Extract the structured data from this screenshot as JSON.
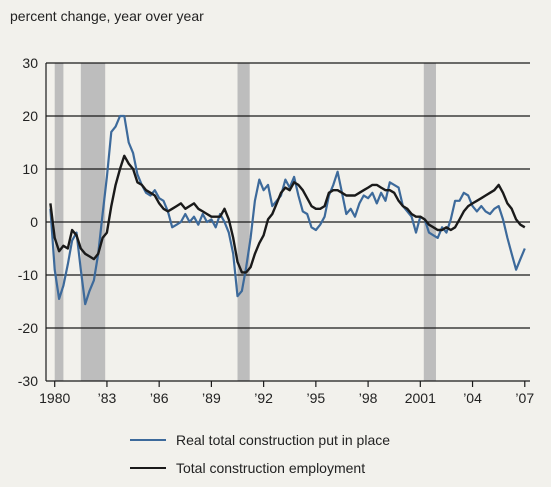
{
  "chart_data": {
    "type": "line",
    "ylabel": "percent change, year over year",
    "ylim": [
      -30,
      30
    ],
    "yticks": [
      -30,
      -20,
      -10,
      0,
      10,
      20,
      30
    ],
    "xlim": [
      1979.5,
      2007.3
    ],
    "xticks": [
      {
        "x": 1980,
        "label": "1980"
      },
      {
        "x": 1983,
        "label": "’83"
      },
      {
        "x": 1986,
        "label": "’86"
      },
      {
        "x": 1989,
        "label": "’89"
      },
      {
        "x": 1992,
        "label": "’92"
      },
      {
        "x": 1995,
        "label": "’95"
      },
      {
        "x": 1998,
        "label": "’98"
      },
      {
        "x": 2001,
        "label": "2001"
      },
      {
        "x": 2004,
        "label": "’04"
      },
      {
        "x": 2007,
        "label": "’07"
      }
    ],
    "grid": true,
    "recessions": [
      [
        1980.0,
        1980.5
      ],
      [
        1981.5,
        1982.9
      ],
      [
        1990.5,
        1991.2
      ],
      [
        2001.2,
        2001.9
      ]
    ],
    "series": [
      {
        "name": "Real total construction put in place",
        "color": "#3d6a9b",
        "points": [
          [
            1979.75,
            2.5
          ],
          [
            1980.0,
            -9.0
          ],
          [
            1980.25,
            -14.5
          ],
          [
            1980.5,
            -12.0
          ],
          [
            1980.75,
            -8.0
          ],
          [
            1981.0,
            -3.5
          ],
          [
            1981.25,
            -2.0
          ],
          [
            1981.5,
            -9.0
          ],
          [
            1981.75,
            -15.5
          ],
          [
            1982.0,
            -13.0
          ],
          [
            1982.25,
            -11.0
          ],
          [
            1982.5,
            -6.0
          ],
          [
            1982.75,
            1.5
          ],
          [
            1983.0,
            8.5
          ],
          [
            1983.25,
            17.0
          ],
          [
            1983.5,
            18.0
          ],
          [
            1983.75,
            20.0
          ],
          [
            1984.0,
            20.0
          ],
          [
            1984.25,
            15.0
          ],
          [
            1984.5,
            13.0
          ],
          [
            1984.75,
            9.0
          ],
          [
            1985.0,
            7.0
          ],
          [
            1985.25,
            5.5
          ],
          [
            1985.5,
            5.0
          ],
          [
            1985.75,
            6.0
          ],
          [
            1986.0,
            4.5
          ],
          [
            1986.25,
            4.0
          ],
          [
            1986.5,
            2.0
          ],
          [
            1986.75,
            -1.0
          ],
          [
            1987.0,
            -0.5
          ],
          [
            1987.25,
            0.0
          ],
          [
            1987.5,
            1.5
          ],
          [
            1987.75,
            0.0
          ],
          [
            1988.0,
            1.0
          ],
          [
            1988.25,
            -0.5
          ],
          [
            1988.5,
            1.5
          ],
          [
            1988.75,
            0.0
          ],
          [
            1989.0,
            0.5
          ],
          [
            1989.25,
            -1.0
          ],
          [
            1989.5,
            1.5
          ],
          [
            1989.75,
            0.0
          ],
          [
            1990.0,
            -2.0
          ],
          [
            1990.25,
            -6.0
          ],
          [
            1990.5,
            -14.0
          ],
          [
            1990.75,
            -13.0
          ],
          [
            1991.0,
            -8.5
          ],
          [
            1991.25,
            -3.0
          ],
          [
            1991.5,
            4.0
          ],
          [
            1991.75,
            8.0
          ],
          [
            1992.0,
            6.0
          ],
          [
            1992.25,
            7.0
          ],
          [
            1992.5,
            3.0
          ],
          [
            1992.75,
            4.0
          ],
          [
            1993.0,
            5.0
          ],
          [
            1993.25,
            8.0
          ],
          [
            1993.5,
            6.5
          ],
          [
            1993.75,
            8.5
          ],
          [
            1994.0,
            5.0
          ],
          [
            1994.25,
            2.0
          ],
          [
            1994.5,
            1.5
          ],
          [
            1994.75,
            -1.0
          ],
          [
            1995.0,
            -1.5
          ],
          [
            1995.25,
            -0.5
          ],
          [
            1995.5,
            1.0
          ],
          [
            1995.75,
            5.0
          ],
          [
            1996.0,
            7.0
          ],
          [
            1996.25,
            9.5
          ],
          [
            1996.5,
            5.5
          ],
          [
            1996.75,
            1.5
          ],
          [
            1997.0,
            2.5
          ],
          [
            1997.25,
            1.0
          ],
          [
            1997.5,
            3.5
          ],
          [
            1997.75,
            5.0
          ],
          [
            1998.0,
            4.5
          ],
          [
            1998.25,
            5.5
          ],
          [
            1998.5,
            3.5
          ],
          [
            1998.75,
            5.5
          ],
          [
            1999.0,
            4.0
          ],
          [
            1999.25,
            7.5
          ],
          [
            1999.5,
            7.0
          ],
          [
            1999.75,
            6.5
          ],
          [
            2000.0,
            3.0
          ],
          [
            2000.25,
            2.0
          ],
          [
            2000.5,
            1.0
          ],
          [
            2000.75,
            -2.0
          ],
          [
            2001.0,
            1.0
          ],
          [
            2001.25,
            0.5
          ],
          [
            2001.5,
            -2.0
          ],
          [
            2001.75,
            -2.5
          ],
          [
            2002.0,
            -3.0
          ],
          [
            2002.25,
            -1.0
          ],
          [
            2002.5,
            -2.0
          ],
          [
            2002.75,
            0.5
          ],
          [
            2003.0,
            4.0
          ],
          [
            2003.25,
            4.0
          ],
          [
            2003.5,
            5.5
          ],
          [
            2003.75,
            5.0
          ],
          [
            2004.0,
            3.0
          ],
          [
            2004.25,
            2.0
          ],
          [
            2004.5,
            3.0
          ],
          [
            2004.75,
            2.0
          ],
          [
            2005.0,
            1.5
          ],
          [
            2005.25,
            2.5
          ],
          [
            2005.5,
            3.0
          ],
          [
            2005.75,
            0.5
          ],
          [
            2006.0,
            -3.0
          ],
          [
            2006.25,
            -6.0
          ],
          [
            2006.5,
            -9.0
          ],
          [
            2006.75,
            -7.0
          ],
          [
            2007.0,
            -5.0
          ]
        ]
      },
      {
        "name": "Total construction employment",
        "color": "#1a1a1a",
        "points": [
          [
            1979.75,
            3.5
          ],
          [
            1980.0,
            -3.0
          ],
          [
            1980.25,
            -5.5
          ],
          [
            1980.5,
            -4.5
          ],
          [
            1980.75,
            -5.0
          ],
          [
            1981.0,
            -1.5
          ],
          [
            1981.25,
            -2.5
          ],
          [
            1981.5,
            -5.0
          ],
          [
            1981.75,
            -6.0
          ],
          [
            1982.0,
            -6.5
          ],
          [
            1982.25,
            -7.0
          ],
          [
            1982.5,
            -6.0
          ],
          [
            1982.75,
            -3.0
          ],
          [
            1983.0,
            -2.0
          ],
          [
            1983.25,
            3.0
          ],
          [
            1983.5,
            7.0
          ],
          [
            1983.75,
            10.0
          ],
          [
            1984.0,
            12.5
          ],
          [
            1984.25,
            11.0
          ],
          [
            1984.5,
            10.0
          ],
          [
            1984.75,
            7.5
          ],
          [
            1985.0,
            7.0
          ],
          [
            1985.25,
            6.0
          ],
          [
            1985.5,
            5.5
          ],
          [
            1985.75,
            5.0
          ],
          [
            1986.0,
            3.5
          ],
          [
            1986.25,
            2.5
          ],
          [
            1986.5,
            2.0
          ],
          [
            1986.75,
            2.5
          ],
          [
            1987.0,
            3.0
          ],
          [
            1987.25,
            3.5
          ],
          [
            1987.5,
            2.5
          ],
          [
            1987.75,
            3.0
          ],
          [
            1988.0,
            3.5
          ],
          [
            1988.25,
            2.5
          ],
          [
            1988.5,
            2.0
          ],
          [
            1988.75,
            1.5
          ],
          [
            1989.0,
            1.0
          ],
          [
            1989.25,
            1.0
          ],
          [
            1989.5,
            1.0
          ],
          [
            1989.75,
            2.5
          ],
          [
            1990.0,
            0.5
          ],
          [
            1990.25,
            -3.0
          ],
          [
            1990.5,
            -7.5
          ],
          [
            1990.75,
            -9.5
          ],
          [
            1991.0,
            -9.5
          ],
          [
            1991.25,
            -8.5
          ],
          [
            1991.5,
            -6.0
          ],
          [
            1991.75,
            -4.0
          ],
          [
            1992.0,
            -2.5
          ],
          [
            1992.25,
            0.5
          ],
          [
            1992.5,
            1.5
          ],
          [
            1992.75,
            3.5
          ],
          [
            1993.0,
            5.5
          ],
          [
            1993.25,
            6.5
          ],
          [
            1993.5,
            6.0
          ],
          [
            1993.75,
            7.5
          ],
          [
            1994.0,
            7.0
          ],
          [
            1994.25,
            6.0
          ],
          [
            1994.5,
            4.5
          ],
          [
            1994.75,
            3.0
          ],
          [
            1995.0,
            2.5
          ],
          [
            1995.25,
            2.5
          ],
          [
            1995.5,
            3.0
          ],
          [
            1995.75,
            5.5
          ],
          [
            1996.0,
            6.0
          ],
          [
            1996.25,
            6.0
          ],
          [
            1996.5,
            5.5
          ],
          [
            1996.75,
            5.0
          ],
          [
            1997.0,
            5.0
          ],
          [
            1997.25,
            5.0
          ],
          [
            1997.5,
            5.5
          ],
          [
            1997.75,
            6.0
          ],
          [
            1998.0,
            6.5
          ],
          [
            1998.25,
            7.0
          ],
          [
            1998.5,
            7.0
          ],
          [
            1998.75,
            6.5
          ],
          [
            1999.0,
            6.0
          ],
          [
            1999.25,
            6.0
          ],
          [
            1999.5,
            5.5
          ],
          [
            1999.75,
            4.0
          ],
          [
            2000.0,
            3.0
          ],
          [
            2000.25,
            2.5
          ],
          [
            2000.5,
            1.5
          ],
          [
            2000.75,
            1.0
          ],
          [
            2001.0,
            1.0
          ],
          [
            2001.25,
            0.5
          ],
          [
            2001.5,
            -0.5
          ],
          [
            2001.75,
            -1.0
          ],
          [
            2002.0,
            -1.5
          ],
          [
            2002.25,
            -1.5
          ],
          [
            2002.5,
            -1.0
          ],
          [
            2002.75,
            -1.5
          ],
          [
            2003.0,
            -1.0
          ],
          [
            2003.25,
            0.5
          ],
          [
            2003.5,
            2.0
          ],
          [
            2003.75,
            3.0
          ],
          [
            2004.0,
            3.5
          ],
          [
            2004.25,
            4.0
          ],
          [
            2004.5,
            4.5
          ],
          [
            2004.75,
            5.0
          ],
          [
            2005.0,
            5.5
          ],
          [
            2005.25,
            6.0
          ],
          [
            2005.5,
            7.0
          ],
          [
            2005.75,
            5.5
          ],
          [
            2006.0,
            3.5
          ],
          [
            2006.25,
            2.5
          ],
          [
            2006.5,
            0.5
          ],
          [
            2006.75,
            -0.5
          ],
          [
            2007.0,
            -1.0
          ]
        ]
      }
    ]
  }
}
